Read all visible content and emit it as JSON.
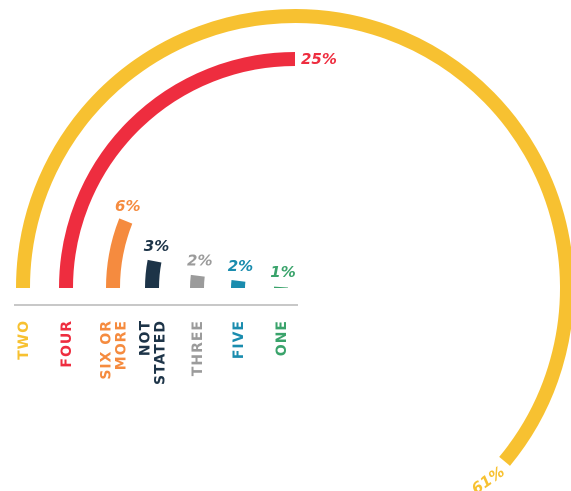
{
  "chart_data": {
    "type": "radial-bar",
    "categories": [
      [
        "TWO"
      ],
      [
        "FOUR"
      ],
      [
        "SIX OR",
        "MORE"
      ],
      [
        "NOT",
        "STATED"
      ],
      [
        "THREE"
      ],
      [
        "FIVE"
      ],
      [
        "ONE"
      ]
    ],
    "values": [
      61,
      25,
      6,
      3,
      2,
      2,
      1
    ],
    "value_labels": [
      "61%",
      "25%",
      "6%",
      "3%",
      "2%",
      "2%",
      "1%"
    ],
    "colors": [
      "#f7c131",
      "#ee2d3f",
      "#f58b3f",
      "#1d3448",
      "#9b9b9b",
      "#1a8cae",
      "#3aa36b"
    ]
  }
}
